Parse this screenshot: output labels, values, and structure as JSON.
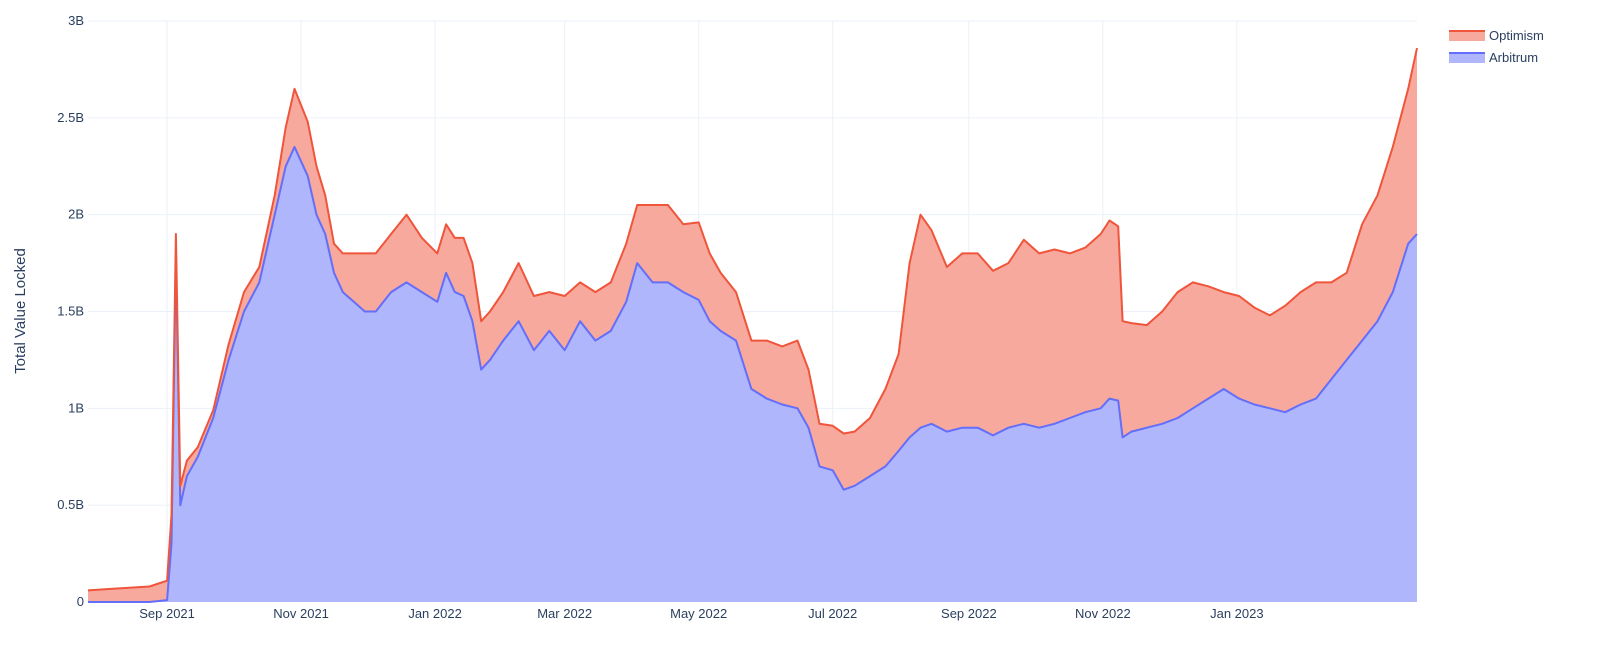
{
  "chart_data": {
    "type": "area",
    "stacked": true,
    "title": "",
    "xlabel": "",
    "ylabel": "Total Value Locked",
    "x_range": [
      "2021-07-27",
      "2023-03-24"
    ],
    "ylim": [
      0,
      3000000000
    ],
    "yticks": [
      {
        "value": 0,
        "label": "0"
      },
      {
        "value": 500000000,
        "label": "0.5B"
      },
      {
        "value": 1000000000,
        "label": "1B"
      },
      {
        "value": 1500000000,
        "label": "1.5B"
      },
      {
        "value": 2000000000,
        "label": "2B"
      },
      {
        "value": 2500000000,
        "label": "2.5B"
      },
      {
        "value": 3000000000,
        "label": "3B"
      }
    ],
    "xticks": [
      {
        "date": "2021-09-01",
        "label": "Sep 2021"
      },
      {
        "date": "2021-11-01",
        "label": "Nov 2021"
      },
      {
        "date": "2022-01-01",
        "label": "Jan 2022"
      },
      {
        "date": "2022-03-01",
        "label": "Mar 2022"
      },
      {
        "date": "2022-05-01",
        "label": "May 2022"
      },
      {
        "date": "2022-07-01",
        "label": "Jul 2022"
      },
      {
        "date": "2022-09-01",
        "label": "Sep 2022"
      },
      {
        "date": "2022-11-01",
        "label": "Nov 2022"
      },
      {
        "date": "2023-01-01",
        "label": "Jan 2023"
      }
    ],
    "grid": true,
    "legend_position": "top-right",
    "legend": [
      {
        "name": "Optimism",
        "line_color": "#ef553b",
        "fill_color": "#f8a99d"
      },
      {
        "name": "Arbitrum",
        "line_color": "#636efa",
        "fill_color": "#b0b6fc"
      }
    ],
    "x": [
      "2021-07-27",
      "2021-08-10",
      "2021-08-24",
      "2021-09-01",
      "2021-09-03",
      "2021-09-05",
      "2021-09-07",
      "2021-09-10",
      "2021-09-15",
      "2021-09-22",
      "2021-09-29",
      "2021-10-06",
      "2021-10-13",
      "2021-10-20",
      "2021-10-25",
      "2021-10-29",
      "2021-11-04",
      "2021-11-08",
      "2021-11-12",
      "2021-11-16",
      "2021-11-20",
      "2021-11-25",
      "2021-11-30",
      "2021-12-05",
      "2021-12-12",
      "2021-12-19",
      "2021-12-26",
      "2022-01-02",
      "2022-01-06",
      "2022-01-10",
      "2022-01-14",
      "2022-01-18",
      "2022-01-22",
      "2022-01-26",
      "2022-02-01",
      "2022-02-08",
      "2022-02-15",
      "2022-02-22",
      "2022-03-01",
      "2022-03-08",
      "2022-03-15",
      "2022-03-22",
      "2022-03-29",
      "2022-04-03",
      "2022-04-10",
      "2022-04-17",
      "2022-04-24",
      "2022-05-01",
      "2022-05-06",
      "2022-05-11",
      "2022-05-18",
      "2022-05-25",
      "2022-06-01",
      "2022-06-08",
      "2022-06-15",
      "2022-06-20",
      "2022-06-25",
      "2022-07-01",
      "2022-07-06",
      "2022-07-11",
      "2022-07-18",
      "2022-07-25",
      "2022-07-31",
      "2022-08-05",
      "2022-08-10",
      "2022-08-15",
      "2022-08-22",
      "2022-08-29",
      "2022-09-05",
      "2022-09-12",
      "2022-09-19",
      "2022-09-26",
      "2022-10-03",
      "2022-10-10",
      "2022-10-17",
      "2022-10-24",
      "2022-10-31",
      "2022-11-04",
      "2022-11-08",
      "2022-11-10",
      "2022-11-14",
      "2022-11-21",
      "2022-11-28",
      "2022-12-05",
      "2022-12-12",
      "2022-12-19",
      "2022-12-26",
      "2023-01-02",
      "2023-01-09",
      "2023-01-16",
      "2023-01-23",
      "2023-01-30",
      "2023-02-06",
      "2023-02-13",
      "2023-02-20",
      "2023-02-27",
      "2023-03-06",
      "2023-03-13",
      "2023-03-20",
      "2023-03-24"
    ],
    "series": [
      {
        "name": "Arbitrum",
        "values": [
          0,
          0,
          0,
          10000000,
          300000000,
          1800000000,
          500000000,
          650000000,
          750000000,
          950000000,
          1250000000,
          1500000000,
          1650000000,
          2000000000,
          2250000000,
          2350000000,
          2200000000,
          2000000000,
          1900000000,
          1700000000,
          1600000000,
          1550000000,
          1500000000,
          1500000000,
          1600000000,
          1650000000,
          1600000000,
          1550000000,
          1700000000,
          1600000000,
          1580000000,
          1450000000,
          1200000000,
          1250000000,
          1350000000,
          1450000000,
          1300000000,
          1400000000,
          1300000000,
          1450000000,
          1350000000,
          1400000000,
          1550000000,
          1750000000,
          1650000000,
          1650000000,
          1600000000,
          1560000000,
          1450000000,
          1400000000,
          1350000000,
          1100000000,
          1050000000,
          1020000000,
          1000000000,
          900000000,
          700000000,
          680000000,
          580000000,
          600000000,
          650000000,
          700000000,
          780000000,
          850000000,
          900000000,
          920000000,
          880000000,
          900000000,
          900000000,
          860000000,
          900000000,
          920000000,
          900000000,
          920000000,
          950000000,
          980000000,
          1000000000,
          1050000000,
          1040000000,
          850000000,
          880000000,
          900000000,
          920000000,
          950000000,
          1000000000,
          1050000000,
          1100000000,
          1050000000,
          1020000000,
          1000000000,
          980000000,
          1020000000,
          1050000000,
          1150000000,
          1250000000,
          1350000000,
          1450000000,
          1600000000,
          1850000000,
          1900000000
        ]
      },
      {
        "name": "Optimism",
        "values": [
          60000000,
          70000000,
          80000000,
          100000000,
          150000000,
          100000000,
          100000000,
          80000000,
          50000000,
          40000000,
          80000000,
          100000000,
          80000000,
          100000000,
          200000000,
          300000000,
          280000000,
          250000000,
          200000000,
          150000000,
          200000000,
          250000000,
          300000000,
          300000000,
          300000000,
          350000000,
          280000000,
          250000000,
          250000000,
          280000000,
          300000000,
          300000000,
          250000000,
          250000000,
          250000000,
          300000000,
          280000000,
          200000000,
          280000000,
          200000000,
          250000000,
          250000000,
          300000000,
          300000000,
          400000000,
          400000000,
          350000000,
          400000000,
          350000000,
          300000000,
          250000000,
          250000000,
          300000000,
          300000000,
          350000000,
          300000000,
          220000000,
          230000000,
          290000000,
          280000000,
          300000000,
          400000000,
          500000000,
          900000000,
          1100000000,
          1000000000,
          850000000,
          900000000,
          900000000,
          850000000,
          850000000,
          950000000,
          900000000,
          900000000,
          850000000,
          850000000,
          900000000,
          920000000,
          900000000,
          600000000,
          560000000,
          530000000,
          580000000,
          650000000,
          650000000,
          580000000,
          500000000,
          530000000,
          500000000,
          480000000,
          550000000,
          580000000,
          600000000,
          500000000,
          450000000,
          600000000,
          650000000,
          750000000,
          800000000,
          960000000
        ]
      }
    ]
  }
}
